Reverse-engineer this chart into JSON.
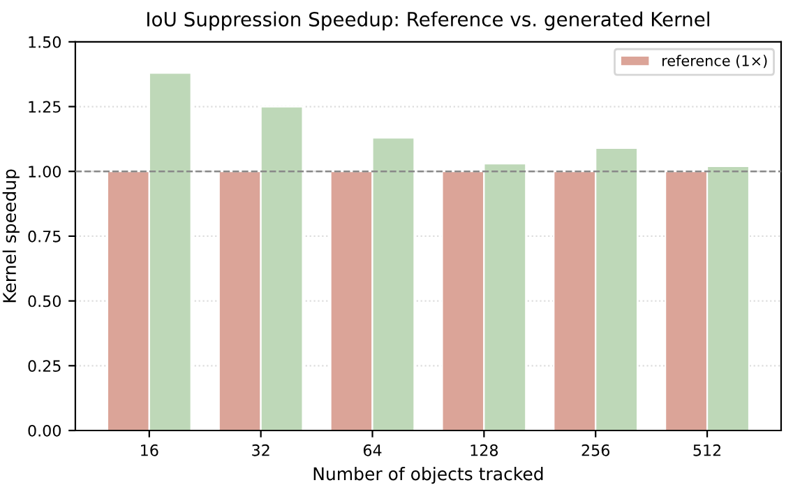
{
  "chart_data": {
    "type": "bar",
    "title": "IoU Suppression Speedup: Reference vs. generated Kernel",
    "xlabel": "Number of objects tracked",
    "ylabel": "Kernel speedup",
    "categories": [
      "16",
      "32",
      "64",
      "128",
      "256",
      "512"
    ],
    "series": [
      {
        "name": "reference (1×)",
        "color": "#dba498",
        "values": [
          1.0,
          1.0,
          1.0,
          1.0,
          1.0,
          1.0
        ]
      },
      {
        "color": "#bed8b8",
        "values": [
          1.38,
          1.25,
          1.13,
          1.03,
          1.09,
          1.02
        ]
      }
    ],
    "ylim": [
      0,
      1.5
    ],
    "yticks": [
      {
        "value": 0,
        "label": "0.00"
      },
      {
        "value": 0.25,
        "label": "0.25"
      },
      {
        "value": 0.5,
        "label": "0.50"
      },
      {
        "value": 0.75,
        "label": "0.75"
      },
      {
        "value": 1.0,
        "label": "1.00"
      },
      {
        "value": 1.25,
        "label": "1.25"
      },
      {
        "value": 1.5,
        "label": "1.50"
      }
    ],
    "ref_lines": [
      {
        "axis": "y",
        "value": 1.0,
        "color": "#888888",
        "line_style": "dashed"
      }
    ],
    "grid": "y",
    "legend": "top right"
  }
}
